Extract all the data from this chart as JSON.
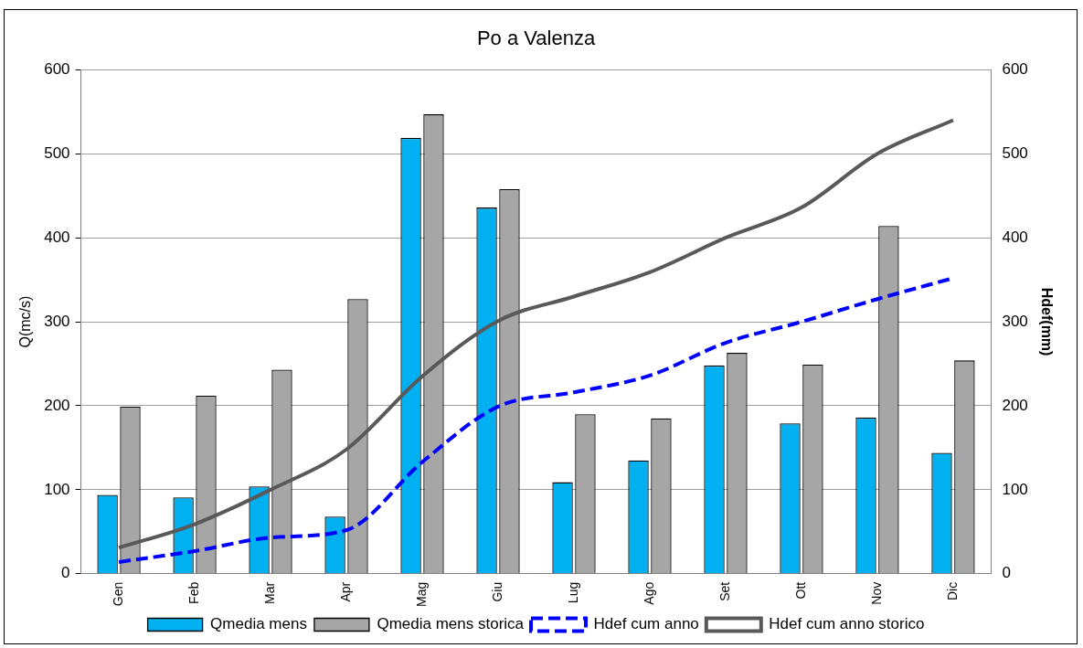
{
  "chart_data": {
    "type": "bar",
    "title": "Po a Valenza",
    "ylabel": "Q(mc/s)",
    "y2label": "Hdef(mm)",
    "categories": [
      "Gen",
      "Feb",
      "Mar",
      "Apr",
      "Mag",
      "Giu",
      "Lug",
      "Ago",
      "Set",
      "Ott",
      "Nov",
      "Dic"
    ],
    "series": [
      {
        "name": "Qmedia mens",
        "color": "#00b0f0",
        "values": [
          94,
          91,
          104,
          68,
          519,
          436,
          109,
          135,
          248,
          179,
          186,
          144
        ]
      },
      {
        "name": "Qmedia mens storica",
        "color": "#a6a6a6",
        "values": [
          199,
          212,
          243,
          327,
          547,
          458,
          190,
          185,
          263,
          249,
          414,
          254
        ]
      },
      {
        "name": "Hdef cum anno",
        "type": "line",
        "axis": "y2",
        "line_style": "dashed",
        "color": "#0000ff",
        "values": [
          14,
          27,
          43,
          52,
          133,
          199,
          216,
          236,
          275,
          300,
          327,
          352
        ]
      },
      {
        "name": "Hdef cum anno storico",
        "type": "line",
        "axis": "y2",
        "line_style": "solid",
        "color": "#595959",
        "values": [
          31,
          59,
          100,
          148,
          235,
          301,
          330,
          359,
          400,
          436,
          500,
          540
        ]
      }
    ],
    "ylim": [
      0,
      600
    ],
    "yticks": [
      0,
      100,
      200,
      300,
      400,
      500,
      600
    ],
    "y2lim": [
      0,
      600
    ],
    "y2ticks": [
      0,
      100,
      200,
      300,
      400,
      500,
      600
    ],
    "grid": "y",
    "legend": "bottom",
    "marker": "none"
  }
}
